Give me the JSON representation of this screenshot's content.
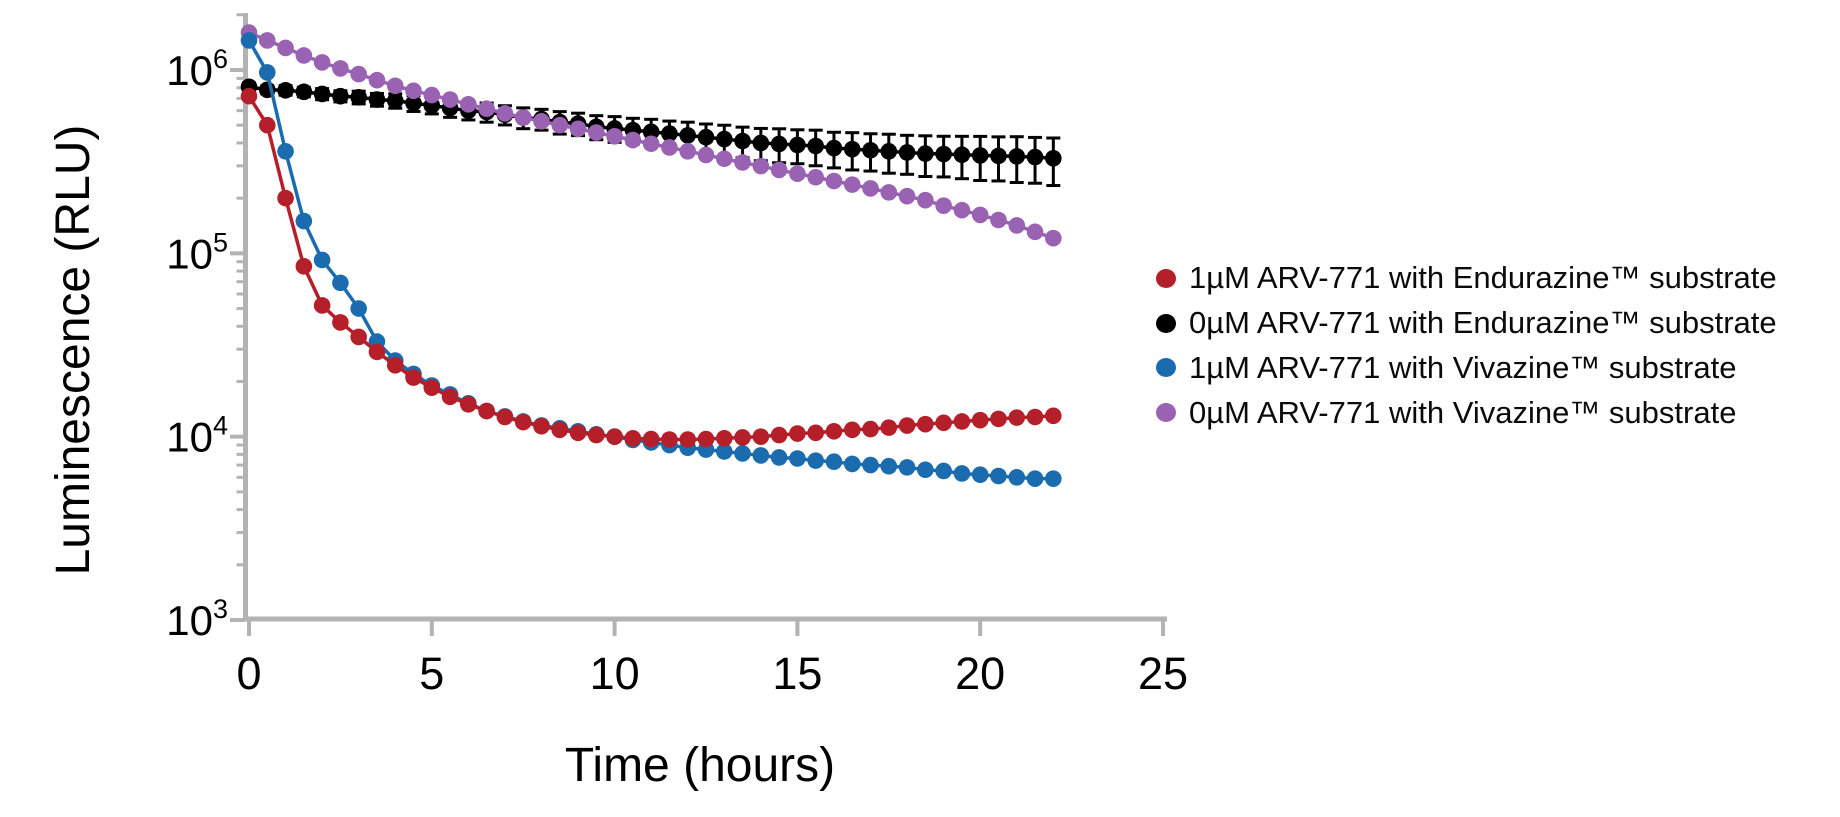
{
  "figure": {
    "background": "#ffffff",
    "axis_color": "#b3b3b3",
    "text_color": "#000000"
  },
  "legend": {
    "items": [
      {
        "label": "1µM ARV-771 with Endurazine™ substrate",
        "color": "#b51f29",
        "marker": "circle-icon"
      },
      {
        "label": "0µM ARV-771 with Endurazine™ substrate",
        "color": "#000000",
        "marker": "circle-icon"
      },
      {
        "label": "1µM ARV-771 with Vivazine™ substrate",
        "color": "#1b6cae",
        "marker": "circle-icon"
      },
      {
        "label": "0µM ARV-771 with Vivazine™ substrate",
        "color": "#9a62b2",
        "marker": "circle-icon"
      }
    ]
  },
  "chart_data": {
    "type": "line",
    "title": "",
    "xlabel": "Time (hours)",
    "ylabel": "Luminescence (RLU)",
    "y_scale": "log",
    "ylim": [
      1000,
      2000000
    ],
    "xlim": [
      0,
      25
    ],
    "grid": false,
    "legend_position": "right-center",
    "x_axis_ticks": [
      0,
      5,
      10,
      15,
      20,
      25
    ],
    "y_axis_tick_exponents": [
      6,
      5,
      4,
      3
    ],
    "y_axis_tick_mantissa": "10",
    "x_hours": [
      0,
      0.5,
      1,
      1.5,
      2,
      2.5,
      3,
      3.5,
      4,
      4.5,
      5,
      5.5,
      6,
      6.5,
      7,
      7.5,
      8,
      8.5,
      9,
      9.5,
      10,
      10.5,
      11,
      11.5,
      12,
      12.5,
      13,
      13.5,
      14,
      14.5,
      15,
      15.5,
      16,
      16.5,
      17,
      17.5,
      18,
      18.5,
      19,
      19.5,
      20,
      20.5,
      21,
      21.5,
      22
    ],
    "series": [
      {
        "name": "1µM ARV-771 with Endurazine™ substrate",
        "color": "#b51f29",
        "marker": "circle",
        "values": [
          720000,
          500000,
          200000,
          85000,
          52000,
          42000,
          35000,
          29000,
          24500,
          21000,
          18500,
          16500,
          15000,
          13800,
          12800,
          12000,
          11400,
          10900,
          10500,
          10200,
          10000,
          9800,
          9700,
          9650,
          9650,
          9700,
          9800,
          9900,
          10000,
          10200,
          10400,
          10500,
          10700,
          10900,
          11000,
          11200,
          11500,
          11700,
          11900,
          12100,
          12300,
          12500,
          12700,
          12800,
          13000
        ]
      },
      {
        "name": "0µM ARV-771 with Endurazine™ substrate",
        "color": "#000000",
        "marker": "circle",
        "values": [
          810000,
          780000,
          775000,
          760000,
          740000,
          720000,
          710000,
          690000,
          680000,
          660000,
          640000,
          620000,
          600000,
          590000,
          570000,
          550000,
          540000,
          520000,
          510000,
          490000,
          480000,
          470000,
          460000,
          450000,
          440000,
          430000,
          420000,
          410000,
          400000,
          395000,
          390000,
          385000,
          375000,
          370000,
          365000,
          360000,
          355000,
          350000,
          348000,
          345000,
          342000,
          340000,
          338000,
          335000,
          330000
        ],
        "error_rel": [
          0.05,
          0.05,
          0.06,
          0.06,
          0.07,
          0.07,
          0.08,
          0.08,
          0.09,
          0.1,
          0.1,
          0.11,
          0.11,
          0.12,
          0.12,
          0.13,
          0.13,
          0.14,
          0.14,
          0.15,
          0.16,
          0.16,
          0.17,
          0.17,
          0.18,
          0.18,
          0.19,
          0.19,
          0.2,
          0.21,
          0.21,
          0.22,
          0.22,
          0.23,
          0.23,
          0.24,
          0.24,
          0.25,
          0.25,
          0.26,
          0.27,
          0.27,
          0.28,
          0.28,
          0.29
        ]
      },
      {
        "name": "1µM ARV-771 with Vivazine™ substrate",
        "color": "#1b6cae",
        "marker": "circle",
        "values": [
          1450000,
          970000,
          360000,
          150000,
          92000,
          69000,
          50000,
          33000,
          26000,
          22000,
          19000,
          17000,
          15200,
          13800,
          12900,
          12100,
          11500,
          11100,
          10700,
          10300,
          10000,
          9600,
          9300,
          9000,
          8700,
          8500,
          8300,
          8100,
          7900,
          7700,
          7600,
          7400,
          7300,
          7100,
          7000,
          6900,
          6800,
          6600,
          6500,
          6300,
          6200,
          6100,
          6000,
          5900,
          5900
        ]
      },
      {
        "name": "0µM ARV-771 with Vivazine™ substrate",
        "color": "#9a62b2",
        "marker": "circle",
        "values": [
          1600000,
          1450000,
          1320000,
          1200000,
          1100000,
          1020000,
          950000,
          880000,
          820000,
          770000,
          730000,
          690000,
          650000,
          615000,
          580000,
          550000,
          525000,
          500000,
          478000,
          456000,
          435000,
          415000,
          396000,
          378000,
          360000,
          344000,
          328000,
          313000,
          299000,
          285000,
          272000,
          260000,
          248000,
          237000,
          226000,
          215000,
          205000,
          195000,
          182000,
          172000,
          162000,
          152000,
          142000,
          131000,
          121000
        ]
      }
    ]
  }
}
